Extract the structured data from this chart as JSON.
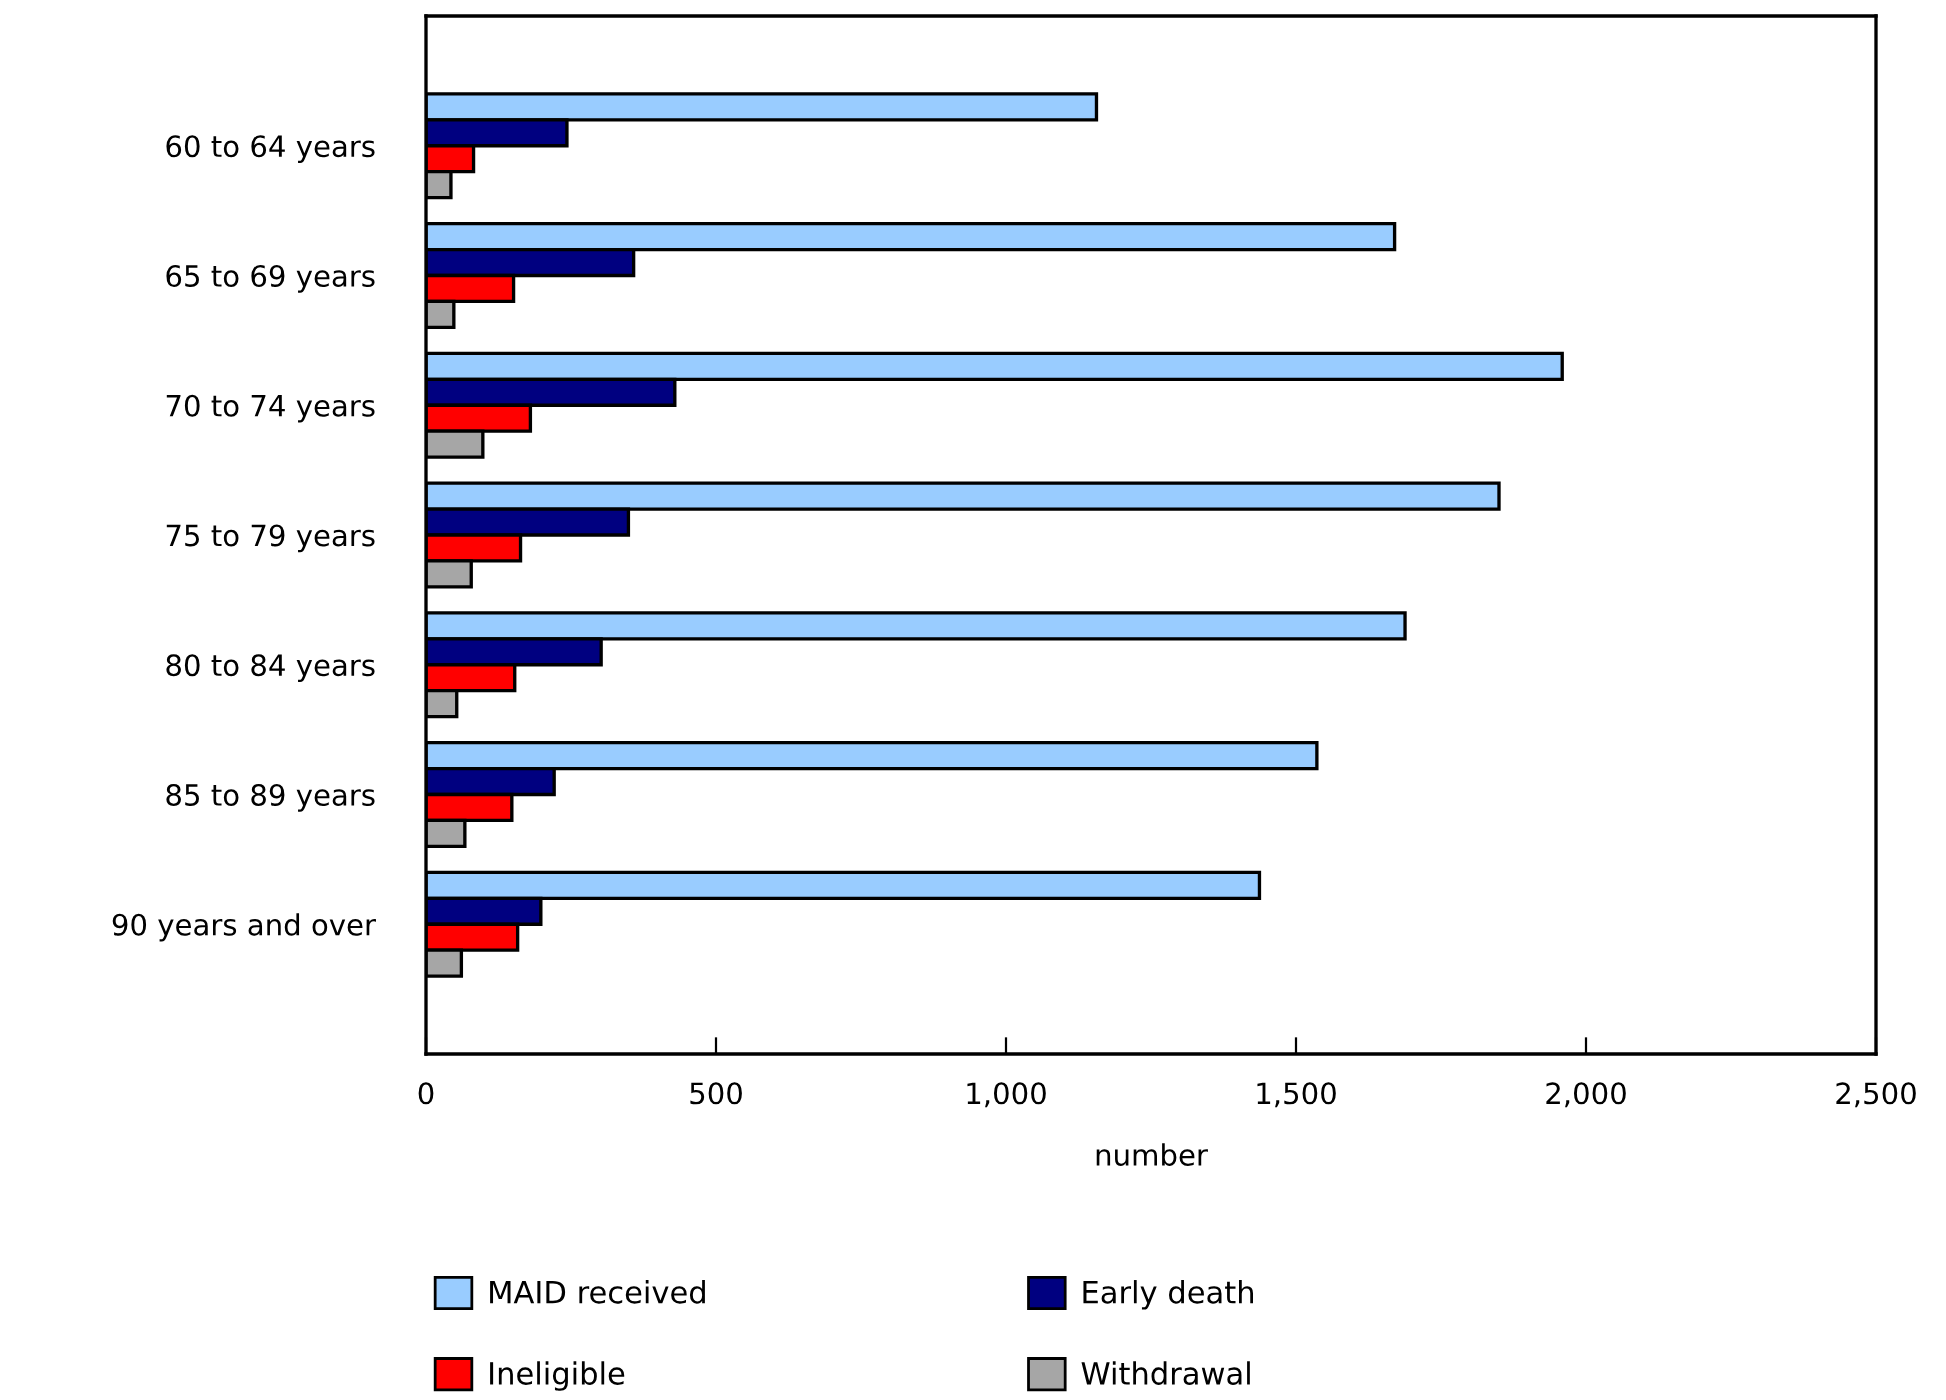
{
  "chart_data": {
    "type": "bar",
    "orientation": "horizontal",
    "xlabel": "number",
    "categories": [
      "60 to 64 years",
      "65 to 69 years",
      "70 to 74 years",
      "75 to 79 years",
      "80 to 84 years",
      "85 to 89 years",
      "90 years and over"
    ],
    "series": [
      {
        "name": "MAID received",
        "color": "#99ccff",
        "values": [
          1156,
          1670,
          1959,
          1850,
          1688,
          1536,
          1437
        ]
      },
      {
        "name": "Early death",
        "color": "#000080",
        "values": [
          243,
          358,
          429,
          349,
          302,
          221,
          198
        ]
      },
      {
        "name": "Ineligible",
        "color": "#ff0000",
        "values": [
          82,
          151,
          180,
          163,
          153,
          148,
          158
        ]
      },
      {
        "name": "Withdrawal",
        "color": "#a6a6a6",
        "values": [
          43,
          48,
          98,
          78,
          53,
          67,
          61
        ]
      }
    ],
    "xlim": [
      0,
      2500
    ],
    "xticks": [
      0,
      {
        "value": 500,
        "label": "500"
      },
      {
        "value": 1000,
        "label": "1,000"
      },
      {
        "value": 1500,
        "label": "1,500"
      },
      {
        "value": 2000,
        "label": "2,000"
      },
      {
        "value": 2500,
        "label": "2,500"
      }
    ],
    "grid": false,
    "legend": "bottom"
  }
}
